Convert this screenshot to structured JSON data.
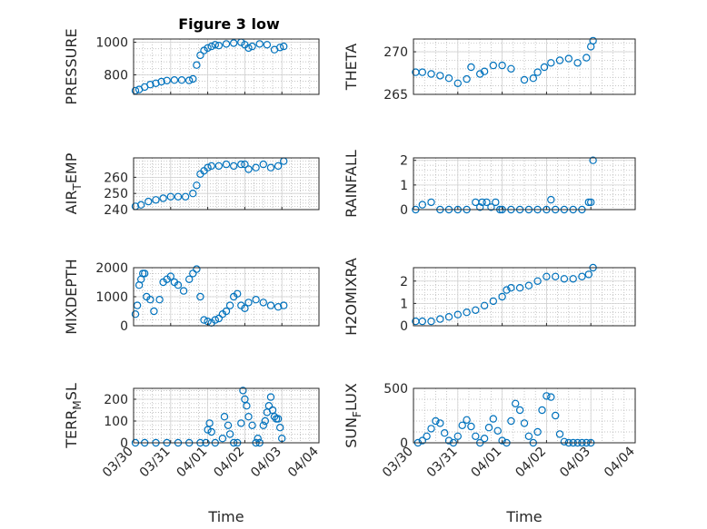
{
  "figure": {
    "title": "Figure 3 low",
    "xlabel": "Time",
    "marker_color": "#0072BD",
    "axis_color": "#262626",
    "grid_color": "#b0b0b0"
  },
  "chart_data": [
    {
      "type": "scatter",
      "ylabel": "PRESSURE",
      "ylim": [
        680,
        1020
      ],
      "yticks": [
        800,
        1000
      ],
      "xlim": [
        0,
        5
      ],
      "xticks": [
        0,
        1,
        2,
        3,
        4,
        5
      ],
      "xticklabels": [
        "03/30",
        "03/31",
        "04/01",
        "04/02",
        "04/03",
        "04/04"
      ],
      "grid": true,
      "x": [
        0.05,
        0.15,
        0.3,
        0.45,
        0.6,
        0.75,
        0.9,
        1.1,
        1.3,
        1.5,
        1.6,
        1.7,
        1.8,
        1.9,
        2.0,
        2.1,
        2.2,
        2.3,
        2.5,
        2.7,
        2.9,
        3.0,
        3.1,
        3.2,
        3.4,
        3.6,
        3.8,
        3.95,
        4.05
      ],
      "y": [
        703,
        710,
        725,
        740,
        748,
        758,
        765,
        768,
        768,
        766,
        775,
        860,
        920,
        950,
        965,
        975,
        985,
        980,
        990,
        995,
        1000,
        985,
        965,
        975,
        990,
        985,
        955,
        968,
        975
      ]
    },
    {
      "type": "scatter",
      "ylabel": "THETA",
      "ylim": [
        265,
        271.5
      ],
      "yticks": [
        265,
        270
      ],
      "xlim": [
        0,
        5
      ],
      "xticks": [
        0,
        1,
        2,
        3,
        4,
        5
      ],
      "xticklabels": [
        "03/30",
        "03/31",
        "04/01",
        "04/02",
        "04/03",
        "04/04"
      ],
      "grid": true,
      "x": [
        0.05,
        0.2,
        0.4,
        0.6,
        0.8,
        1.0,
        1.2,
        1.3,
        1.5,
        1.6,
        1.8,
        2.0,
        2.2,
        2.5,
        2.7,
        2.8,
        2.95,
        3.1,
        3.3,
        3.5,
        3.7,
        3.9,
        4.0,
        4.05
      ],
      "y": [
        267.6,
        267.6,
        267.4,
        267.2,
        266.9,
        266.3,
        266.8,
        268.2,
        267.4,
        267.7,
        268.4,
        268.4,
        268.0,
        266.7,
        266.9,
        267.6,
        268.2,
        268.7,
        269.0,
        269.2,
        268.7,
        269.3,
        270.6,
        271.3
      ]
    },
    {
      "type": "scatter",
      "ylabel": "AIR_TEMP",
      "ylim": [
        240,
        272
      ],
      "yticks": [
        240,
        250,
        260
      ],
      "xlim": [
        0,
        5
      ],
      "xticks": [
        0,
        1,
        2,
        3,
        4,
        5
      ],
      "xticklabels": [
        "03/30",
        "03/31",
        "04/01",
        "04/02",
        "04/03",
        "04/04"
      ],
      "grid": true,
      "x": [
        0.05,
        0.2,
        0.4,
        0.6,
        0.8,
        1.0,
        1.2,
        1.4,
        1.6,
        1.7,
        1.8,
        1.9,
        2.0,
        2.1,
        2.3,
        2.5,
        2.7,
        2.9,
        3.0,
        3.1,
        3.3,
        3.5,
        3.7,
        3.9,
        4.05
      ],
      "y": [
        242,
        243,
        245,
        246,
        247,
        248,
        248,
        248,
        250,
        255,
        262,
        264,
        266,
        267,
        267,
        268,
        267,
        268,
        268,
        265,
        266,
        268,
        266,
        267,
        270
      ]
    },
    {
      "type": "scatter",
      "ylabel": "RAINFALL",
      "ylim": [
        0,
        2.1
      ],
      "yticks": [
        0,
        1,
        2
      ],
      "xlim": [
        0,
        5
      ],
      "xticks": [
        0,
        1,
        2,
        3,
        4,
        5
      ],
      "xticklabels": [
        "03/30",
        "03/31",
        "04/01",
        "04/02",
        "04/03",
        "04/04"
      ],
      "grid": true,
      "x": [
        0.05,
        0.2,
        0.4,
        0.6,
        0.8,
        1.0,
        1.2,
        1.4,
        1.5,
        1.55,
        1.65,
        1.75,
        1.85,
        1.95,
        2.0,
        2.2,
        2.4,
        2.6,
        2.8,
        3.0,
        3.1,
        3.2,
        3.4,
        3.6,
        3.8,
        3.95,
        4.0,
        4.05
      ],
      "y": [
        0,
        0.2,
        0.3,
        0,
        0,
        0,
        0,
        0.3,
        0.1,
        0.3,
        0.3,
        0.1,
        0.3,
        0,
        0,
        0,
        0,
        0,
        0,
        0,
        0.4,
        0,
        0,
        0,
        0,
        0.3,
        0.3,
        2.0
      ]
    },
    {
      "type": "scatter",
      "ylabel": "MIXDEPTH",
      "ylim": [
        0,
        2000
      ],
      "yticks": [
        0,
        1000,
        2000
      ],
      "xlim": [
        0,
        5
      ],
      "xticks": [
        0,
        1,
        2,
        3,
        4,
        5
      ],
      "xticklabels": [
        "03/30",
        "03/31",
        "04/01",
        "04/02",
        "04/03",
        "04/04"
      ],
      "grid": true,
      "x": [
        0.05,
        0.1,
        0.15,
        0.2,
        0.25,
        0.3,
        0.35,
        0.45,
        0.55,
        0.7,
        0.8,
        0.9,
        1.0,
        1.1,
        1.2,
        1.35,
        1.5,
        1.6,
        1.7,
        1.8,
        1.9,
        2.0,
        2.1,
        2.2,
        2.3,
        2.4,
        2.5,
        2.6,
        2.7,
        2.8,
        2.9,
        3.0,
        3.1,
        3.3,
        3.5,
        3.7,
        3.9,
        4.05
      ],
      "y": [
        400,
        700,
        1400,
        1600,
        1800,
        1800,
        1000,
        900,
        500,
        900,
        1500,
        1600,
        1700,
        1500,
        1400,
        1200,
        1600,
        1800,
        1950,
        1000,
        200,
        150,
        100,
        200,
        250,
        400,
        500,
        700,
        1000,
        1100,
        700,
        600,
        800,
        900,
        800,
        700,
        650,
        700
      ]
    },
    {
      "type": "scatter",
      "ylabel": "H2OMIXRA",
      "ylim": [
        0,
        2.6
      ],
      "yticks": [
        0,
        1,
        2
      ],
      "xlim": [
        0,
        5
      ],
      "xticks": [
        0,
        1,
        2,
        3,
        4,
        5
      ],
      "xticklabels": [
        "03/30",
        "03/31",
        "04/01",
        "04/02",
        "04/03",
        "04/04"
      ],
      "grid": true,
      "x": [
        0.05,
        0.2,
        0.4,
        0.6,
        0.8,
        1.0,
        1.2,
        1.4,
        1.6,
        1.8,
        2.0,
        2.1,
        2.2,
        2.4,
        2.6,
        2.8,
        3.0,
        3.2,
        3.4,
        3.6,
        3.8,
        3.95,
        4.05
      ],
      "y": [
        0.2,
        0.2,
        0.2,
        0.3,
        0.4,
        0.5,
        0.6,
        0.7,
        0.9,
        1.1,
        1.3,
        1.6,
        1.7,
        1.7,
        1.8,
        2.0,
        2.2,
        2.2,
        2.1,
        2.1,
        2.2,
        2.3,
        2.6
      ]
    },
    {
      "type": "scatter",
      "ylabel": "TERR_MSL",
      "ylim": [
        0,
        250
      ],
      "yticks": [
        0,
        100,
        200
      ],
      "xlim": [
        0,
        5
      ],
      "xticks": [
        0,
        1,
        2,
        3,
        4,
        5
      ],
      "xticklabels": [
        "03/30",
        "03/31",
        "04/01",
        "04/02",
        "04/03",
        "04/04"
      ],
      "grid": true,
      "x": [
        0.05,
        0.3,
        0.6,
        0.9,
        1.2,
        1.5,
        1.8,
        1.95,
        2.0,
        2.05,
        2.1,
        2.2,
        2.4,
        2.45,
        2.55,
        2.6,
        2.7,
        2.8,
        2.9,
        2.95,
        3.0,
        3.05,
        3.1,
        3.2,
        3.3,
        3.35,
        3.4,
        3.5,
        3.55,
        3.6,
        3.65,
        3.7,
        3.75,
        3.8,
        3.85,
        3.9,
        3.95,
        4.0
      ],
      "y": [
        0,
        0,
        0,
        0,
        0,
        0,
        0,
        0,
        60,
        90,
        50,
        0,
        20,
        120,
        80,
        40,
        0,
        0,
        90,
        240,
        200,
        170,
        120,
        80,
        0,
        20,
        0,
        80,
        100,
        140,
        170,
        210,
        150,
        120,
        110,
        110,
        70,
        20
      ]
    },
    {
      "type": "scatter",
      "ylabel": "SUN_FLUX",
      "ylim": [
        0,
        500
      ],
      "yticks": [
        0,
        500
      ],
      "xlim": [
        0,
        5
      ],
      "xticks": [
        0,
        1,
        2,
        3,
        4,
        5
      ],
      "xticklabels": [
        "03/30",
        "03/31",
        "04/01",
        "04/02",
        "04/03",
        "04/04"
      ],
      "grid": true,
      "x": [
        0.1,
        0.2,
        0.3,
        0.4,
        0.5,
        0.6,
        0.7,
        0.8,
        0.9,
        1.0,
        1.1,
        1.2,
        1.3,
        1.4,
        1.5,
        1.6,
        1.7,
        1.8,
        1.9,
        2.0,
        2.1,
        2.2,
        2.3,
        2.4,
        2.5,
        2.6,
        2.7,
        2.8,
        2.9,
        3.0,
        3.1,
        3.2,
        3.3,
        3.4,
        3.5,
        3.6,
        3.7,
        3.8,
        3.9,
        4.0
      ],
      "y": [
        0,
        20,
        60,
        130,
        200,
        180,
        90,
        20,
        0,
        60,
        160,
        210,
        150,
        60,
        0,
        40,
        140,
        220,
        110,
        20,
        0,
        200,
        360,
        300,
        180,
        60,
        0,
        100,
        300,
        430,
        420,
        250,
        80,
        10,
        0,
        0,
        0,
        0,
        0,
        0
      ]
    }
  ]
}
